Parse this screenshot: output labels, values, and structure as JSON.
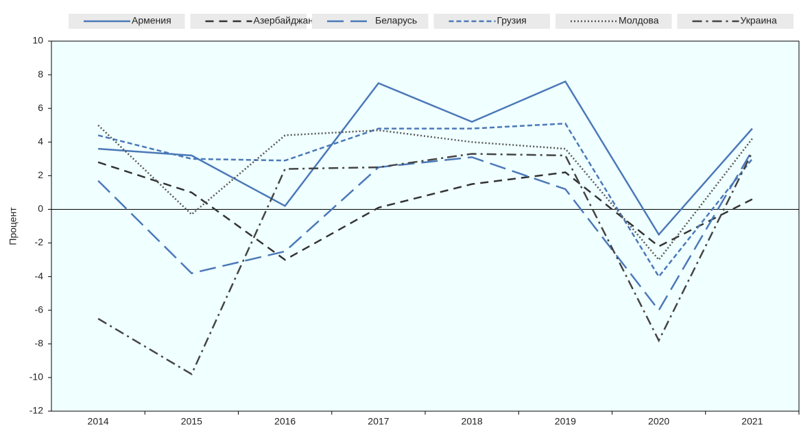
{
  "chart_data": {
    "type": "line",
    "y_label": "Процент",
    "categories": [
      "2014",
      "2015",
      "2016",
      "2017",
      "2018",
      "2019",
      "2020",
      "2021"
    ],
    "ylim": [
      -12,
      10
    ],
    "yticks": [
      -12,
      -10,
      -8,
      -6,
      -4,
      -2,
      0,
      2,
      4,
      6,
      8,
      10
    ],
    "series": [
      {
        "name": "Армения",
        "color": "#4a78b8",
        "dash": "solid",
        "values": [
          3.6,
          3.2,
          0.2,
          7.5,
          5.2,
          7.6,
          -1.5,
          4.8
        ]
      },
      {
        "name": "Азербайджан",
        "color": "#333333",
        "dash": "dashed",
        "values": [
          2.8,
          1.0,
          -3.0,
          0.1,
          1.5,
          2.2,
          -2.2,
          0.6
        ]
      },
      {
        "name": "Беларусь",
        "color": "#4a78b8",
        "dash": "long-dashed",
        "values": [
          1.7,
          -3.8,
          -2.5,
          2.5,
          3.1,
          1.2,
          -6.0,
          3.5
        ]
      },
      {
        "name": "Грузия",
        "color": "#4a78b8",
        "dash": "short-dashed",
        "values": [
          4.4,
          3.0,
          2.9,
          4.8,
          4.8,
          5.1,
          -4.0,
          3.0
        ]
      },
      {
        "name": "Молдова",
        "color": "#555555",
        "dash": "dotted",
        "values": [
          5.0,
          -0.3,
          4.4,
          4.7,
          4.0,
          3.6,
          -3.0,
          4.2
        ]
      },
      {
        "name": "Украина",
        "color": "#444444",
        "dash": "dash-dot",
        "values": [
          -6.5,
          -9.8,
          2.4,
          2.5,
          3.3,
          3.2,
          -7.8,
          3.4
        ]
      }
    ]
  }
}
